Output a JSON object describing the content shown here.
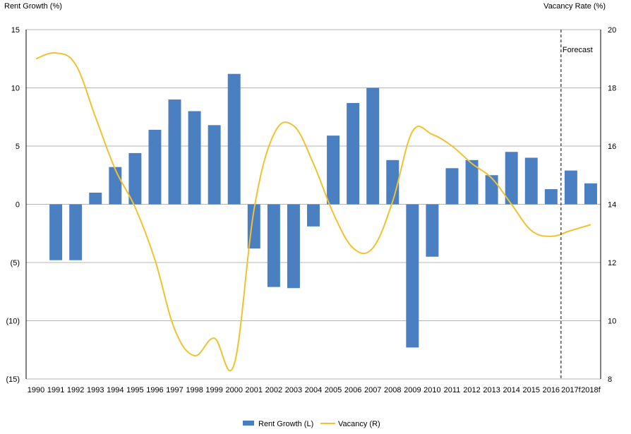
{
  "chart_data": {
    "type": "bar",
    "left_axis_title": "Rent Growth (%)",
    "right_axis_title": "Vacancy Rate (%)",
    "left_ticks": [
      "15",
      "10",
      "5",
      "0",
      "(5)",
      "(10)",
      "(15)"
    ],
    "left_tick_values": [
      15,
      10,
      5,
      0,
      -5,
      -10,
      -15
    ],
    "right_ticks": [
      "20",
      "18",
      "16",
      "14",
      "12",
      "10",
      "8"
    ],
    "right_tick_values": [
      20,
      18,
      16,
      14,
      12,
      10,
      8
    ],
    "ylim_left": [
      -15,
      15
    ],
    "ylim_right": [
      8,
      20
    ],
    "categories": [
      "1990",
      "1991",
      "1992",
      "1993",
      "1994",
      "1995",
      "1996",
      "1997",
      "1998",
      "1999",
      "2000",
      "2001",
      "2002",
      "2003",
      "2004",
      "2005",
      "2006",
      "2007",
      "2008",
      "2009",
      "2010",
      "2011",
      "2012",
      "2013",
      "2014",
      "2015",
      "2016",
      "2017f",
      "2018f"
    ],
    "series": [
      {
        "name": "Rent Growth (L)",
        "type": "bar",
        "axis": "left",
        "color": "#4a7fc1",
        "values": [
          0,
          -4.8,
          -4.8,
          1.0,
          3.2,
          4.4,
          6.4,
          9.0,
          8.0,
          6.8,
          11.2,
          -3.8,
          -7.1,
          -7.2,
          -1.9,
          5.9,
          8.7,
          10.0,
          3.8,
          -12.3,
          -4.5,
          3.1,
          3.8,
          2.5,
          4.5,
          4.0,
          1.3,
          2.9,
          1.8
        ]
      },
      {
        "name": "Vacancy (R)",
        "type": "line",
        "axis": "right",
        "color": "#f2c12e",
        "values": [
          19.0,
          19.2,
          18.8,
          17.0,
          15.2,
          13.9,
          12.1,
          9.7,
          8.8,
          9.4,
          8.5,
          13.8,
          16.4,
          16.7,
          15.4,
          13.7,
          12.5,
          12.5,
          14.1,
          16.5,
          16.4,
          16.0,
          15.4,
          14.9,
          14.0,
          13.1,
          12.9,
          13.1,
          13.3
        ]
      }
    ],
    "annotation": "Forecast",
    "forecast_divider_after": "2016",
    "grid": true,
    "legend": "bottom-center"
  }
}
